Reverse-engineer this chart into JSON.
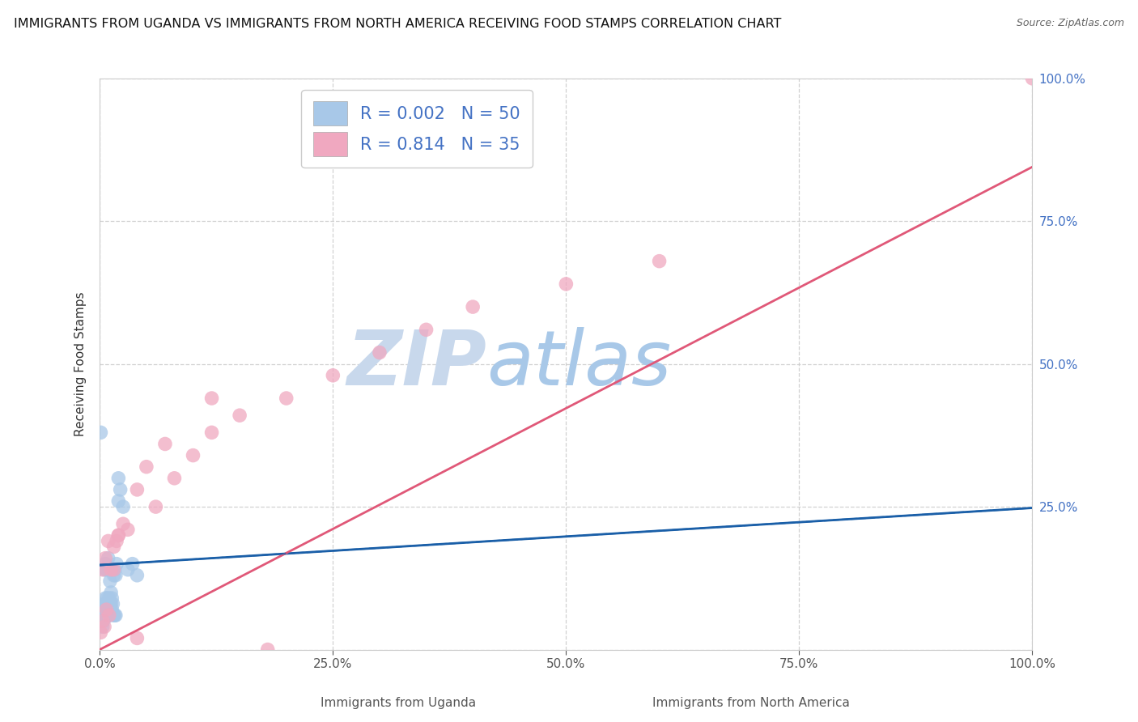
{
  "title": "IMMIGRANTS FROM UGANDA VS IMMIGRANTS FROM NORTH AMERICA RECEIVING FOOD STAMPS CORRELATION CHART",
  "source": "Source: ZipAtlas.com",
  "xlabel_bottom_left": "Immigrants from Uganda",
  "xlabel_bottom_right": "Immigrants from North America",
  "ylabel": "Receiving Food Stamps",
  "watermark_zip": "ZIP",
  "watermark_atlas": "atlas",
  "series": [
    {
      "label": "Immigrants from Uganda",
      "color": "#a8c8e8",
      "R": 0.002,
      "N": 50,
      "x": [
        0.001,
        0.002,
        0.002,
        0.003,
        0.003,
        0.004,
        0.004,
        0.005,
        0.005,
        0.005,
        0.006,
        0.006,
        0.006,
        0.006,
        0.007,
        0.007,
        0.007,
        0.008,
        0.008,
        0.008,
        0.009,
        0.009,
        0.009,
        0.01,
        0.01,
        0.01,
        0.01,
        0.011,
        0.011,
        0.012,
        0.012,
        0.013,
        0.013,
        0.014,
        0.014,
        0.015,
        0.015,
        0.016,
        0.016,
        0.017,
        0.017,
        0.018,
        0.02,
        0.02,
        0.022,
        0.025,
        0.03,
        0.035,
        0.04,
        0.001
      ],
      "y": [
        0.38,
        0.05,
        0.07,
        0.04,
        0.06,
        0.05,
        0.07,
        0.06,
        0.08,
        0.14,
        0.07,
        0.09,
        0.06,
        0.15,
        0.08,
        0.07,
        0.14,
        0.06,
        0.09,
        0.08,
        0.07,
        0.16,
        0.06,
        0.07,
        0.06,
        0.09,
        0.14,
        0.08,
        0.12,
        0.08,
        0.1,
        0.09,
        0.07,
        0.14,
        0.08,
        0.13,
        0.06,
        0.14,
        0.06,
        0.13,
        0.06,
        0.15,
        0.3,
        0.26,
        0.28,
        0.25,
        0.14,
        0.15,
        0.13,
        0.05
      ],
      "trend_color": "#1a5fa8",
      "trend_style": "solid",
      "trend_y_intercept": 0.148,
      "trend_slope": 0.1
    },
    {
      "label": "Immigrants from North America",
      "color": "#f0a8c0",
      "R": 0.814,
      "N": 35,
      "x": [
        0.001,
        0.003,
        0.005,
        0.007,
        0.01,
        0.012,
        0.015,
        0.018,
        0.02,
        0.025,
        0.03,
        0.04,
        0.05,
        0.06,
        0.08,
        0.1,
        0.12,
        0.15,
        0.2,
        0.25,
        0.3,
        0.35,
        0.4,
        0.5,
        0.6,
        0.003,
        0.006,
        0.009,
        0.015,
        0.02,
        0.04,
        0.07,
        0.12,
        0.18,
        1.0
      ],
      "y": [
        0.03,
        0.05,
        0.04,
        0.07,
        0.06,
        0.14,
        0.14,
        0.19,
        0.2,
        0.22,
        0.21,
        0.28,
        0.32,
        0.25,
        0.3,
        0.34,
        0.38,
        0.41,
        0.44,
        0.48,
        0.52,
        0.56,
        0.6,
        0.64,
        0.68,
        0.14,
        0.16,
        0.19,
        0.18,
        0.2,
        0.02,
        0.36,
        0.44,
        0.0,
        1.0
      ],
      "trend_color": "#e05878",
      "trend_style": "solid",
      "trend_y_intercept": 0.0,
      "trend_slope": 0.845
    }
  ],
  "xlim": [
    0.0,
    1.0
  ],
  "ylim": [
    0.0,
    1.0
  ],
  "xticks": [
    0.0,
    0.25,
    0.5,
    0.75,
    1.0
  ],
  "yticks": [
    0.0,
    0.25,
    0.5,
    0.75,
    1.0
  ],
  "xticklabels": [
    "0.0%",
    "25.0%",
    "50.0%",
    "75.0%",
    "100.0%"
  ],
  "yticklabels_right": [
    "",
    "25.0%",
    "50.0%",
    "75.0%",
    "100.0%"
  ],
  "background_color": "#ffffff",
  "grid_color": "#cccccc",
  "title_fontsize": 11.5,
  "axis_label_fontsize": 11,
  "tick_fontsize": 11,
  "legend_fontsize": 15,
  "watermark_color_zip": "#c8d8ec",
  "watermark_color_atlas": "#a8c8e8",
  "watermark_fontsize": 68
}
